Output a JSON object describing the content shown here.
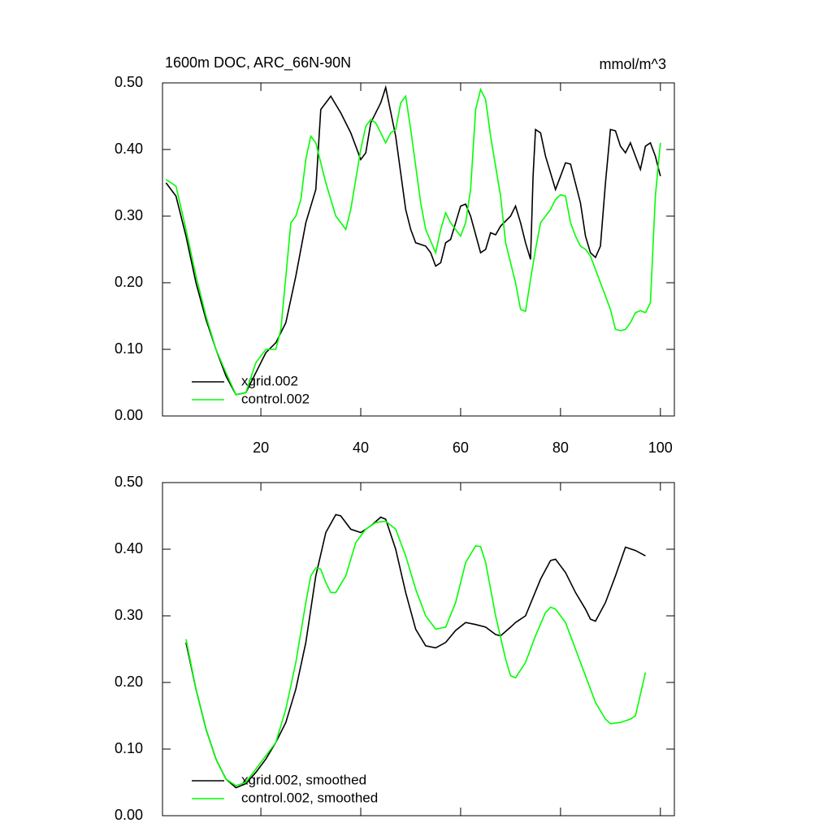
{
  "chart_data": [
    {
      "type": "line",
      "title": "1600m DOC, ARC_66N-90N",
      "units": "mmol/m^3",
      "xlim": [
        0.3,
        102.8
      ],
      "xticks": [
        20,
        40,
        60,
        80,
        100
      ],
      "show_xtick_labels": true,
      "ylim": [
        0,
        0.5
      ],
      "yticks": [
        {
          "value": 0,
          "label": "0.00"
        },
        {
          "value": 0.1,
          "label": "0.10"
        },
        {
          "value": 0.2,
          "label": "0.20"
        },
        {
          "value": 0.3,
          "label": "0.30"
        },
        {
          "value": 0.4,
          "label": "0.40"
        },
        {
          "value": 0.5,
          "label": "0.50"
        }
      ],
      "series": [
        {
          "name": "xgrid.002",
          "color": "#000000",
          "x": [
            1,
            3,
            5,
            7,
            9,
            11,
            13,
            15,
            17,
            19,
            21,
            23,
            25,
            27,
            29,
            31,
            32,
            33,
            34,
            36,
            38,
            40,
            41,
            42,
            44,
            45,
            47,
            49,
            50,
            51,
            53,
            54,
            55,
            56,
            57,
            58,
            59,
            60,
            61,
            62,
            64,
            65,
            66,
            67,
            68,
            70,
            71,
            72,
            73,
            74,
            74.5,
            75,
            76,
            77,
            79,
            80,
            81,
            82,
            84,
            85,
            86,
            87,
            88,
            89,
            90,
            91,
            92,
            93,
            94,
            96,
            97,
            98,
            99,
            100
          ],
          "values": [
            0.35,
            0.33,
            0.27,
            0.2,
            0.145,
            0.1,
            0.06,
            0.032,
            0.035,
            0.065,
            0.095,
            0.11,
            0.14,
            0.21,
            0.29,
            0.34,
            0.46,
            0.47,
            0.48,
            0.455,
            0.425,
            0.385,
            0.395,
            0.44,
            0.47,
            0.493,
            0.42,
            0.31,
            0.28,
            0.26,
            0.255,
            0.245,
            0.225,
            0.23,
            0.26,
            0.265,
            0.29,
            0.315,
            0.318,
            0.3,
            0.245,
            0.25,
            0.275,
            0.272,
            0.285,
            0.3,
            0.315,
            0.29,
            0.26,
            0.235,
            0.36,
            0.43,
            0.425,
            0.39,
            0.34,
            0.36,
            0.38,
            0.378,
            0.32,
            0.27,
            0.245,
            0.238,
            0.255,
            0.35,
            0.43,
            0.428,
            0.405,
            0.395,
            0.41,
            0.37,
            0.405,
            0.41,
            0.39,
            0.36
          ]
        },
        {
          "name": "control.002",
          "color": "#00ff00",
          "x": [
            1,
            3,
            5,
            7,
            9,
            11,
            13,
            15,
            17,
            19,
            21,
            23,
            24,
            26,
            27,
            28,
            29,
            30,
            31,
            32,
            33,
            34,
            35,
            37,
            38,
            40,
            41,
            42,
            43,
            45,
            46,
            47,
            48,
            49,
            50,
            52,
            53,
            55,
            56,
            57,
            58,
            60,
            61,
            62,
            63,
            64,
            65,
            66,
            68,
            69,
            71,
            72,
            73,
            74,
            75,
            76,
            78,
            79,
            80,
            81,
            82,
            83,
            84,
            85,
            86,
            88,
            90,
            91,
            92,
            93,
            94,
            95,
            96,
            97,
            98,
            99,
            100
          ],
          "values": [
            0.355,
            0.345,
            0.28,
            0.21,
            0.15,
            0.1,
            0.065,
            0.032,
            0.035,
            0.08,
            0.1,
            0.1,
            0.13,
            0.29,
            0.3,
            0.325,
            0.385,
            0.42,
            0.41,
            0.38,
            0.35,
            0.325,
            0.3,
            0.28,
            0.31,
            0.4,
            0.435,
            0.445,
            0.44,
            0.41,
            0.425,
            0.43,
            0.47,
            0.48,
            0.43,
            0.32,
            0.28,
            0.245,
            0.28,
            0.305,
            0.29,
            0.27,
            0.29,
            0.34,
            0.46,
            0.49,
            0.475,
            0.42,
            0.33,
            0.26,
            0.2,
            0.16,
            0.157,
            0.205,
            0.25,
            0.29,
            0.31,
            0.325,
            0.332,
            0.33,
            0.29,
            0.27,
            0.255,
            0.25,
            0.24,
            0.2,
            0.16,
            0.13,
            0.128,
            0.13,
            0.14,
            0.155,
            0.158,
            0.155,
            0.17,
            0.33,
            0.41
          ]
        }
      ]
    },
    {
      "type": "line",
      "xlim": [
        0.3,
        102.8
      ],
      "xticks": [
        20,
        40,
        60,
        80,
        100
      ],
      "show_xtick_labels": false,
      "ylim": [
        0,
        0.5
      ],
      "yticks": [
        {
          "value": 0,
          "label": "0.00"
        },
        {
          "value": 0.1,
          "label": "0.10"
        },
        {
          "value": 0.2,
          "label": "0.20"
        },
        {
          "value": 0.3,
          "label": "0.30"
        },
        {
          "value": 0.4,
          "label": "0.40"
        },
        {
          "value": 0.5,
          "label": "0.50"
        }
      ],
      "series": [
        {
          "name": "xgrid.002, smoothed",
          "color": "#000000",
          "x": [
            5,
            7,
            9,
            11,
            13,
            15,
            17,
            19,
            21,
            23,
            25,
            27,
            29,
            31,
            33,
            35,
            36,
            38,
            40,
            42,
            44,
            45,
            47,
            49,
            51,
            53,
            55,
            57,
            59,
            61,
            63,
            65,
            67,
            68,
            70,
            71,
            73,
            76,
            78,
            79,
            81,
            83,
            85,
            86,
            87,
            89,
            91,
            93,
            95,
            97
          ],
          "values": [
            0.26,
            0.19,
            0.13,
            0.085,
            0.055,
            0.042,
            0.048,
            0.065,
            0.085,
            0.11,
            0.14,
            0.19,
            0.26,
            0.36,
            0.425,
            0.452,
            0.45,
            0.43,
            0.425,
            0.435,
            0.448,
            0.445,
            0.4,
            0.335,
            0.28,
            0.255,
            0.252,
            0.26,
            0.278,
            0.29,
            0.287,
            0.283,
            0.272,
            0.27,
            0.283,
            0.29,
            0.3,
            0.355,
            0.383,
            0.385,
            0.365,
            0.335,
            0.31,
            0.295,
            0.292,
            0.32,
            0.36,
            0.403,
            0.398,
            0.39
          ]
        },
        {
          "name": "control.002, smoothed",
          "color": "#00ff00",
          "x": [
            5,
            7,
            9,
            11,
            13,
            15,
            17,
            19,
            21,
            23,
            25,
            27,
            29,
            30,
            31,
            32,
            33,
            34,
            35,
            37,
            39,
            41,
            43,
            45,
            47,
            49,
            51,
            53,
            55,
            57,
            59,
            61,
            63,
            64,
            65,
            67,
            69,
            70,
            71,
            73,
            75,
            77,
            78,
            79,
            81,
            83,
            85,
            87,
            89,
            90,
            92,
            94,
            95,
            97
          ],
          "values": [
            0.265,
            0.19,
            0.13,
            0.085,
            0.055,
            0.045,
            0.05,
            0.07,
            0.09,
            0.11,
            0.16,
            0.23,
            0.32,
            0.36,
            0.372,
            0.37,
            0.35,
            0.335,
            0.335,
            0.36,
            0.41,
            0.43,
            0.44,
            0.442,
            0.43,
            0.39,
            0.34,
            0.3,
            0.28,
            0.283,
            0.32,
            0.38,
            0.405,
            0.404,
            0.38,
            0.3,
            0.235,
            0.21,
            0.207,
            0.23,
            0.27,
            0.305,
            0.313,
            0.31,
            0.29,
            0.25,
            0.21,
            0.17,
            0.145,
            0.138,
            0.14,
            0.145,
            0.15,
            0.215
          ]
        }
      ]
    }
  ]
}
